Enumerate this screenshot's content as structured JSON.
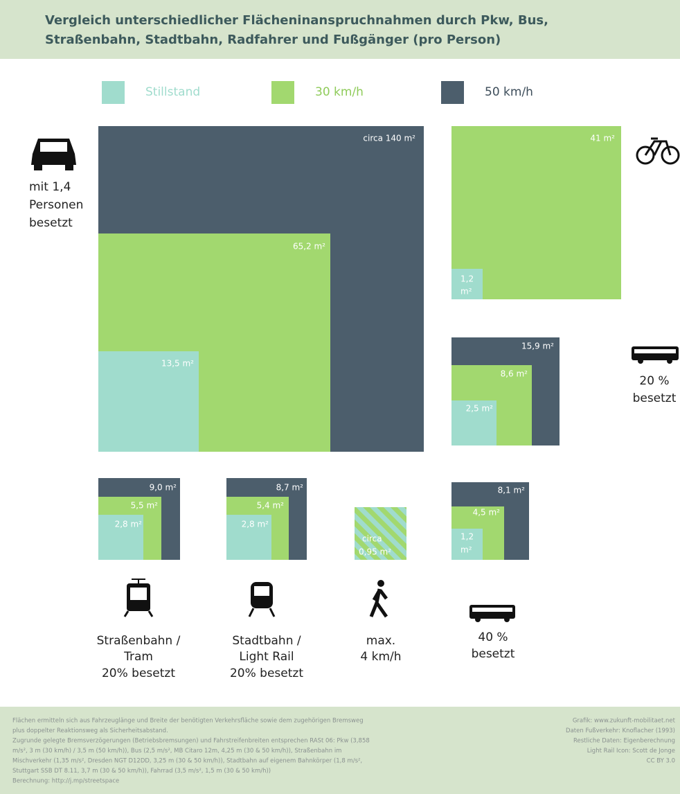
{
  "header": {
    "title": [
      "Vergleich unterschiedlicher Flächeninanspruchnahmen durch Pkw, Bus,",
      "Straßenbahn, Stadtbahn, Radfahrer und Fußgänger (pro Person)"
    ]
  },
  "legend": [
    "Stillstand",
    "30 km/h",
    "50 km/h"
  ],
  "groups": [
    {
      "caption": [
        "mit 1,4",
        "Personen",
        "besetzt"
      ],
      "labels": [
        "circa 140 m²",
        "65,2 m²",
        "13,5 m²"
      ]
    },
    {
      "labels": [
        "41 m²",
        "1,2",
        "m²"
      ]
    },
    {
      "caption": [
        "20 %",
        "besetzt"
      ],
      "labels": [
        "15,9 m²",
        "8,6 m²",
        "2,5 m²"
      ]
    },
    {
      "caption": [
        "Straßenbahn /",
        "Tram",
        "20% besetzt"
      ],
      "labels": [
        "9,0 m²",
        "5,5 m²",
        "2,8 m²"
      ]
    },
    {
      "caption": [
        "Stadtbahn /",
        "Light Rail",
        "20% besetzt"
      ],
      "labels": [
        "8,7 m²",
        "5,4 m²",
        "2,8 m²"
      ]
    },
    {
      "caption": [
        "max.",
        "4 km/h"
      ],
      "labels": [
        "circa",
        "0,95 m²"
      ]
    },
    {
      "caption": [
        "40 %",
        "besetzt"
      ],
      "labels": [
        "8,1 m²",
        "4,5 m²",
        "1,2",
        "m²"
      ]
    }
  ],
  "footer": {
    "left": [
      "Flächen ermitteln sich aus Fahrzeuglänge und Breite der benötigten Verkehrsfläche sowie dem zugehörigen Bremsweg",
      "plus doppelter Reaktionsweg als Sicherheitsabstand.",
      "Zugrunde gelegte Bremsverzögerungen (Betriebsbremsungen) und Fahrstreifenbreiten entsprechen RASt 06: Pkw (3,858",
      "m/s², 3 m (30 km/h) / 3,5 m (50 km/h)), Bus (2,5 m/s², MB Citaro 12m, 4,25 m (30 & 50 km/h)), Straßenbahn im",
      "Mischverkehr (1,35 m/s², Dresden NGT D12DD, 3,25 m (30 & 50 km/h)), Stadtbahn auf eigenem Bahnkörper (1,8 m/s²,",
      "Stuttgart SSB DT 8.11, 3,7 m (30 & 50 km/h)), Fahrrad (3,5 m/s², 1,5 m (30 & 50 km/h))",
      "Berechnung: http://j.mp/streetspace"
    ],
    "right": [
      "Grafik: www.zukunft-mobilitaet.net",
      "Daten Fußverkehr: Knoflacher (1993)",
      "Restliche Daten: Eigenberechnung",
      "Light Rail Icon: Scott de Jonge",
      "CC BY 3.0"
    ]
  }
}
